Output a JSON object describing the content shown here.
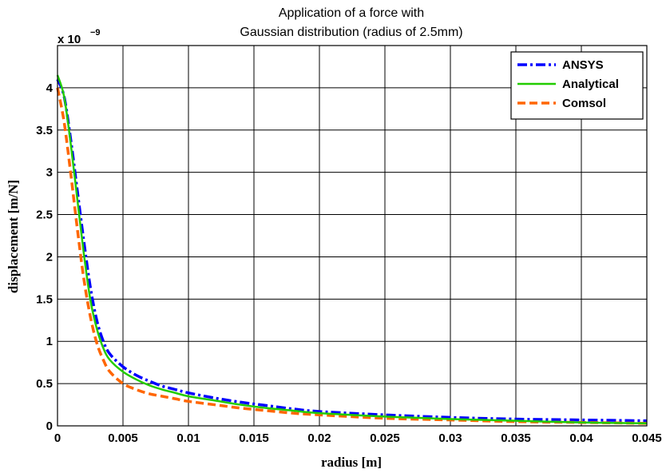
{
  "chart_data": {
    "type": "line",
    "title": [
      "Application of a force with",
      "Gaussian distribution (radius of 2.5mm)"
    ],
    "xlabel": "radius [m]",
    "ylabel": "displacement [m/N]",
    "y_multiplier": {
      "base": "x 10",
      "exponent": "−9"
    },
    "xlim": [
      0,
      0.045
    ],
    "ylim": [
      0,
      4.5
    ],
    "x_ticks": [
      0,
      0.005,
      0.01,
      0.015,
      0.02,
      0.025,
      0.03,
      0.035,
      0.04,
      0.045
    ],
    "x_tick_labels": [
      "0",
      "0.005",
      "0.01",
      "0.015",
      "0.02",
      "0.025",
      "0.03",
      "0.035",
      "0.04",
      "0.045"
    ],
    "y_ticks": [
      0,
      0.5,
      1,
      1.5,
      2,
      2.5,
      3,
      3.5,
      4
    ],
    "y_tick_labels": [
      "0",
      "0.5",
      "1",
      "1.5",
      "2",
      "2.5",
      "3",
      "3.5",
      "4"
    ],
    "grid": true,
    "legend_position": "top-right",
    "series": [
      {
        "name": "ANSYS",
        "color": "#0000ff",
        "style": "dashdot",
        "x": [
          0,
          0.0005,
          0.001,
          0.0015,
          0.002,
          0.0025,
          0.003,
          0.0035,
          0.004,
          0.005,
          0.006,
          0.007,
          0.008,
          0.009,
          0.01,
          0.012,
          0.014,
          0.016,
          0.018,
          0.02,
          0.025,
          0.03,
          0.035,
          0.04,
          0.045
        ],
        "y": [
          4.1,
          3.9,
          3.4,
          2.8,
          2.2,
          1.65,
          1.25,
          1.0,
          0.85,
          0.7,
          0.6,
          0.53,
          0.47,
          0.43,
          0.39,
          0.33,
          0.28,
          0.24,
          0.2,
          0.17,
          0.13,
          0.1,
          0.08,
          0.07,
          0.06
        ]
      },
      {
        "name": "Analytical",
        "color": "#22cc00",
        "style": "solid",
        "x": [
          0,
          0.0005,
          0.001,
          0.0015,
          0.002,
          0.0025,
          0.003,
          0.0035,
          0.004,
          0.005,
          0.006,
          0.007,
          0.008,
          0.009,
          0.01,
          0.012,
          0.014,
          0.016,
          0.018,
          0.02,
          0.025,
          0.03,
          0.035,
          0.04,
          0.045
        ],
        "y": [
          4.15,
          3.9,
          3.35,
          2.7,
          2.05,
          1.5,
          1.15,
          0.92,
          0.78,
          0.64,
          0.55,
          0.48,
          0.43,
          0.39,
          0.35,
          0.3,
          0.25,
          0.21,
          0.18,
          0.15,
          0.11,
          0.08,
          0.06,
          0.04,
          0.03
        ]
      },
      {
        "name": "Comsol",
        "color": "#ff6600",
        "style": "dashed",
        "x": [
          0,
          0.0005,
          0.001,
          0.0015,
          0.002,
          0.0025,
          0.003,
          0.0035,
          0.004,
          0.005,
          0.006,
          0.007,
          0.008,
          0.009,
          0.01,
          0.012,
          0.014,
          0.016,
          0.018,
          0.02,
          0.025,
          0.03,
          0.035,
          0.04,
          0.045
        ],
        "y": [
          4.0,
          3.6,
          3.0,
          2.35,
          1.75,
          1.3,
          0.98,
          0.78,
          0.64,
          0.5,
          0.43,
          0.38,
          0.35,
          0.32,
          0.29,
          0.25,
          0.21,
          0.18,
          0.15,
          0.13,
          0.09,
          0.07,
          0.05,
          0.04,
          0.03
        ]
      }
    ]
  }
}
